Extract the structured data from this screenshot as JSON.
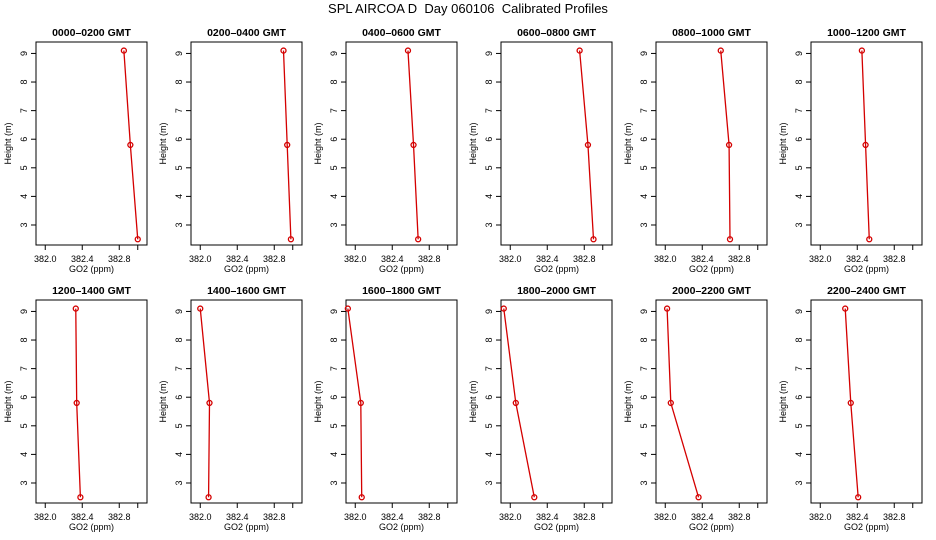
{
  "title": "SPL AIRCOA D  Day 060106  Calibrated Profiles",
  "colors": {
    "line": "#d40000",
    "axis": "#000000"
  },
  "xlabel": "GO2 (ppm)",
  "ylabel": "Height (m)",
  "chart_data": [
    {
      "type": "line",
      "title": "0000–0200 GMT",
      "xlabel": "GO2 (ppm)",
      "ylabel": "Height (m)",
      "xlim": [
        381.9,
        383.1
      ],
      "ylim": [
        2.3,
        9.4
      ],
      "xticks": [
        "382.0",
        "382.4",
        "382.8"
      ],
      "yticks": [
        "3",
        "4",
        "5",
        "6",
        "7",
        "8",
        "9"
      ],
      "x": [
        382.85,
        382.92,
        383.0
      ],
      "y": [
        9.1,
        5.8,
        2.5
      ]
    },
    {
      "type": "line",
      "title": "0200–0400 GMT",
      "xlabel": "GO2 (ppm)",
      "ylabel": "Height (m)",
      "xlim": [
        381.9,
        383.1
      ],
      "ylim": [
        2.3,
        9.4
      ],
      "xticks": [
        "382.0",
        "382.4",
        "382.8"
      ],
      "yticks": [
        "3",
        "4",
        "5",
        "6",
        "7",
        "8",
        "9"
      ],
      "x": [
        382.9,
        382.94,
        382.98
      ],
      "y": [
        9.1,
        5.8,
        2.5
      ]
    },
    {
      "type": "line",
      "title": "0400–0600 GMT",
      "xlabel": "GO2 (ppm)",
      "ylabel": "Height (m)",
      "xlim": [
        381.9,
        383.1
      ],
      "ylim": [
        2.3,
        9.4
      ],
      "xticks": [
        "382.0",
        "382.4",
        "382.8"
      ],
      "yticks": [
        "3",
        "4",
        "5",
        "6",
        "7",
        "8",
        "9"
      ],
      "x": [
        382.57,
        382.63,
        382.68
      ],
      "y": [
        9.1,
        5.8,
        2.5
      ]
    },
    {
      "type": "line",
      "title": "0600–0800 GMT",
      "xlabel": "GO2 (ppm)",
      "ylabel": "Height (m)",
      "xlim": [
        381.9,
        383.1
      ],
      "ylim": [
        2.3,
        9.4
      ],
      "xticks": [
        "382.0",
        "382.4",
        "382.8"
      ],
      "yticks": [
        "3",
        "4",
        "5",
        "6",
        "7",
        "8",
        "9"
      ],
      "x": [
        382.75,
        382.84,
        382.9
      ],
      "y": [
        9.1,
        5.8,
        2.5
      ]
    },
    {
      "type": "line",
      "title": "0800–1000 GMT",
      "xlabel": "GO2 (ppm)",
      "ylabel": "Height (m)",
      "xlim": [
        381.9,
        383.1
      ],
      "ylim": [
        2.3,
        9.4
      ],
      "xticks": [
        "382.0",
        "382.4",
        "382.8"
      ],
      "yticks": [
        "3",
        "4",
        "5",
        "6",
        "7",
        "8",
        "9"
      ],
      "x": [
        382.6,
        382.69,
        382.7
      ],
      "y": [
        9.1,
        5.8,
        2.5
      ]
    },
    {
      "type": "line",
      "title": "1000–1200 GMT",
      "xlabel": "GO2 (ppm)",
      "ylabel": "Height (m)",
      "xlim": [
        381.9,
        383.1
      ],
      "ylim": [
        2.3,
        9.4
      ],
      "xticks": [
        "382.0",
        "382.4",
        "382.8"
      ],
      "yticks": [
        "3",
        "4",
        "5",
        "6",
        "7",
        "8",
        "9"
      ],
      "x": [
        382.45,
        382.49,
        382.53
      ],
      "y": [
        9.1,
        5.8,
        2.5
      ]
    },
    {
      "type": "line",
      "title": "1200–1400 GMT",
      "xlabel": "GO2 (ppm)",
      "ylabel": "Height (m)",
      "xlim": [
        381.9,
        383.1
      ],
      "ylim": [
        2.3,
        9.4
      ],
      "xticks": [
        "382.0",
        "382.4",
        "382.8"
      ],
      "yticks": [
        "3",
        "4",
        "5",
        "6",
        "7",
        "8",
        "9"
      ],
      "x": [
        382.33,
        382.34,
        382.38
      ],
      "y": [
        9.1,
        5.8,
        2.5
      ]
    },
    {
      "type": "line",
      "title": "1400–1600 GMT",
      "xlabel": "GO2 (ppm)",
      "ylabel": "Height (m)",
      "xlim": [
        381.9,
        383.1
      ],
      "ylim": [
        2.3,
        9.4
      ],
      "xticks": [
        "382.0",
        "382.4",
        "382.8"
      ],
      "yticks": [
        "3",
        "4",
        "5",
        "6",
        "7",
        "8",
        "9"
      ],
      "x": [
        382.0,
        382.1,
        382.09
      ],
      "y": [
        9.1,
        5.8,
        2.5
      ]
    },
    {
      "type": "line",
      "title": "1600–1800 GMT",
      "xlabel": "GO2 (ppm)",
      "ylabel": "Height (m)",
      "xlim": [
        381.9,
        383.1
      ],
      "ylim": [
        2.3,
        9.4
      ],
      "xticks": [
        "382.0",
        "382.4",
        "382.8"
      ],
      "yticks": [
        "3",
        "4",
        "5",
        "6",
        "7",
        "8",
        "9"
      ],
      "x": [
        381.92,
        382.06,
        382.07
      ],
      "y": [
        9.1,
        5.8,
        2.5
      ]
    },
    {
      "type": "line",
      "title": "1800–2000 GMT",
      "xlabel": "GO2 (ppm)",
      "ylabel": "Height (m)",
      "xlim": [
        381.9,
        383.1
      ],
      "ylim": [
        2.3,
        9.4
      ],
      "xticks": [
        "382.0",
        "382.4",
        "382.8"
      ],
      "yticks": [
        "3",
        "4",
        "5",
        "6",
        "7",
        "8",
        "9"
      ],
      "x": [
        381.93,
        382.06,
        382.26
      ],
      "y": [
        9.1,
        5.8,
        2.5
      ]
    },
    {
      "type": "line",
      "title": "2000–2200 GMT",
      "xlabel": "GO2 (ppm)",
      "ylabel": "Height (m)",
      "xlim": [
        381.9,
        383.1
      ],
      "ylim": [
        2.3,
        9.4
      ],
      "xticks": [
        "382.0",
        "382.4",
        "382.8"
      ],
      "yticks": [
        "3",
        "4",
        "5",
        "6",
        "7",
        "8",
        "9"
      ],
      "x": [
        382.02,
        382.06,
        382.36
      ],
      "y": [
        9.1,
        5.8,
        2.5
      ]
    },
    {
      "type": "line",
      "title": "2200–2400 GMT",
      "xlabel": "GO2 (ppm)",
      "ylabel": "Height (m)",
      "xlim": [
        381.9,
        383.1
      ],
      "ylim": [
        2.3,
        9.4
      ],
      "xticks": [
        "382.0",
        "382.4",
        "382.8"
      ],
      "yticks": [
        "3",
        "4",
        "5",
        "6",
        "7",
        "8",
        "9"
      ],
      "x": [
        382.27,
        382.33,
        382.41
      ],
      "y": [
        9.1,
        5.8,
        2.5
      ]
    }
  ]
}
